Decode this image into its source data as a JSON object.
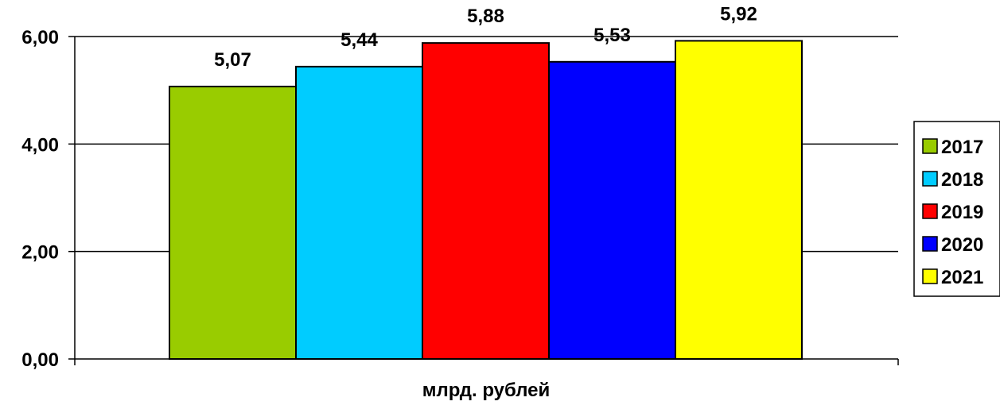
{
  "chart_data": {
    "type": "bar",
    "categories": [
      "млрд. рублей"
    ],
    "series": [
      {
        "name": "2017",
        "value": 5.07,
        "label": "5,07",
        "color": "#99CC00"
      },
      {
        "name": "2018",
        "value": 5.44,
        "label": "5,44",
        "color": "#00CCFF"
      },
      {
        "name": "2019",
        "value": 5.88,
        "label": "5,88",
        "color": "#FF0000"
      },
      {
        "name": "2020",
        "value": 5.53,
        "label": "5,53",
        "color": "#0000FF"
      },
      {
        "name": "2021",
        "value": 5.92,
        "label": "5,92",
        "color": "#FFFF00"
      }
    ],
    "xlabel": "млрд. рублей",
    "ylim": [
      0,
      6
    ],
    "yticks": [
      {
        "value": 0,
        "label": "0,00"
      },
      {
        "value": 2,
        "label": "2,00"
      },
      {
        "value": 4,
        "label": "4,00"
      },
      {
        "value": 6,
        "label": "6,00"
      }
    ],
    "grid": true,
    "legend_position": "right"
  }
}
